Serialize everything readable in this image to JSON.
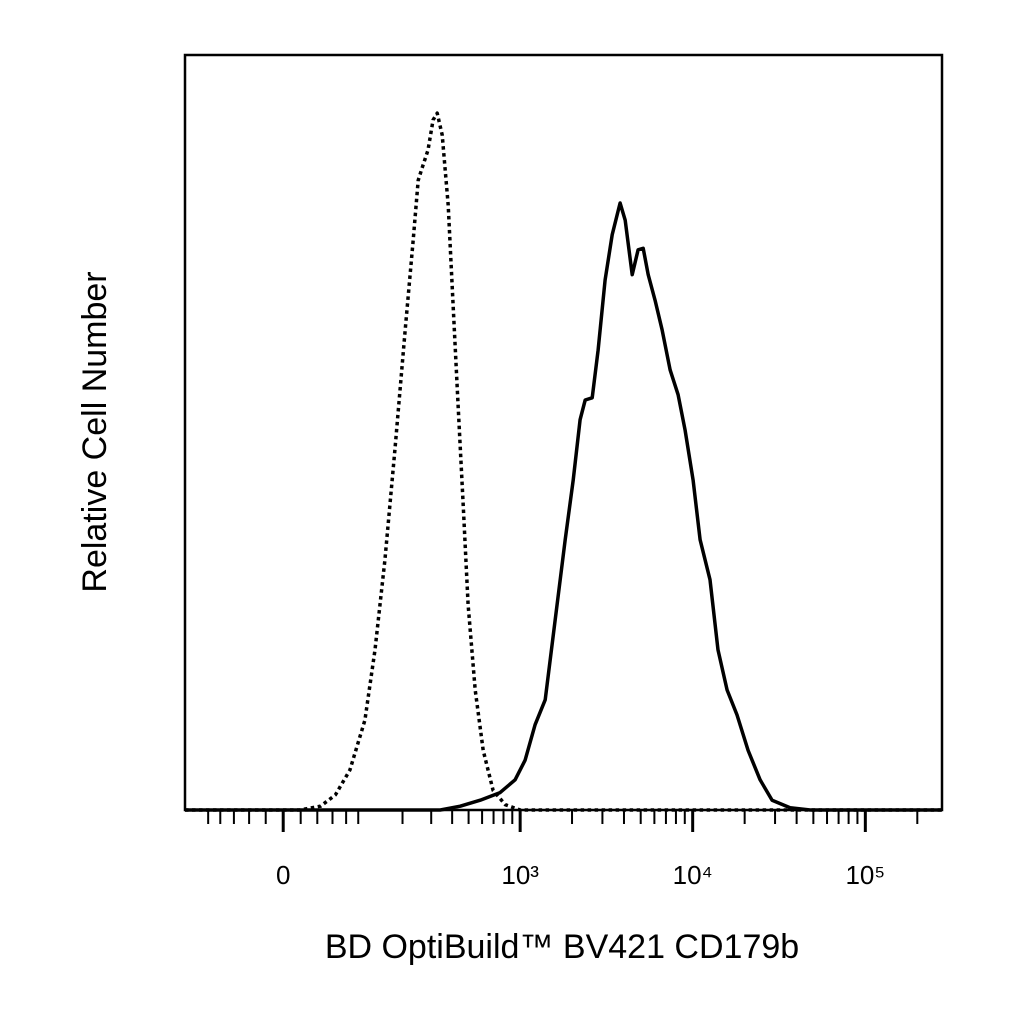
{
  "chart_data": {
    "type": "line",
    "x_label": "BD OptiBuild™ BV421 CD179b",
    "y_label": "Relative Cell Number",
    "xscale": "biexponential",
    "xlim": [
      -146,
      278000
    ],
    "ylim": [
      0,
      100
    ],
    "xticks": [
      0,
      {
        "value": 1000,
        "label": "10³"
      },
      {
        "value": 10000,
        "label": "10⁴"
      },
      {
        "value": 100000,
        "label": "10⁵"
      }
    ],
    "xminorticks": [
      -100,
      -80,
      -60,
      -40,
      -20,
      20,
      40,
      60,
      80,
      100,
      200,
      300,
      400,
      500,
      600,
      700,
      800,
      900,
      2000,
      3000,
      4000,
      5000,
      6000,
      7000,
      8000,
      9000,
      20000,
      30000,
      40000,
      50000,
      60000,
      70000,
      80000,
      90000,
      200000
    ],
    "series": [
      {
        "color": "#000000",
        "line_style": "dotted",
        "x": [
          -146,
          19,
          44,
          64,
          86,
          112,
          132,
          154,
          179,
          208,
          233,
          250,
          264,
          287,
          308,
          326,
          349,
          379,
          405,
          434,
          465,
          497,
          547,
          609,
          696,
          819,
          1000,
          278000
        ],
        "values": [
          0,
          0,
          0.5,
          2.0,
          5.3,
          11.9,
          21.2,
          33.1,
          47.7,
          63.6,
          75.5,
          83.4,
          85.0,
          87.4,
          91.4,
          92.3,
          89.4,
          80.1,
          66.9,
          53.6,
          40.4,
          27.2,
          15.9,
          7.9,
          2.6,
          0.7,
          0,
          0
        ]
      },
      {
        "color": "#000000",
        "line_style": "solid",
        "x": [
          -146,
          340,
          446,
          585,
          764,
          935,
          1069,
          1222,
          1397,
          1597,
          1825,
          2031,
          2227,
          2385,
          2618,
          2831,
          3111,
          3417,
          3800,
          4063,
          4463,
          4828,
          5168,
          5525,
          6061,
          6647,
          7404,
          8237,
          9044,
          10056,
          11033,
          12606,
          14025,
          15819,
          18071,
          20944,
          24582,
          28849,
          36669,
          47906,
          278000
        ],
        "values": [
          0,
          0,
          0.5,
          1.3,
          2.3,
          4.0,
          6.6,
          11.3,
          14.6,
          25.2,
          35.8,
          43.7,
          51.7,
          54.3,
          54.6,
          60.9,
          70.2,
          76.2,
          80.4,
          78.1,
          70.9,
          74.2,
          74.4,
          70.9,
          67.5,
          63.6,
          58.3,
          55.0,
          50.3,
          43.7,
          35.8,
          30.5,
          21.2,
          15.9,
          12.6,
          7.9,
          4.0,
          1.3,
          0.3,
          0,
          0
        ]
      }
    ]
  }
}
